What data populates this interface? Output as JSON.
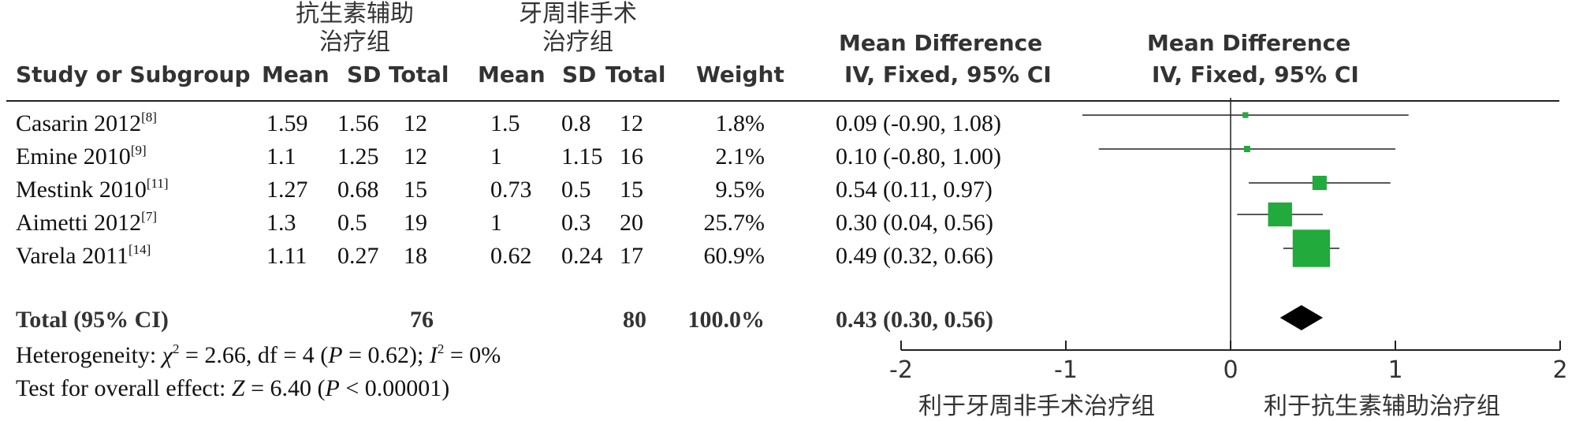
{
  "chart_data": {
    "type": "forest",
    "headers": {
      "group1": "抗生素辅助\n治疗组",
      "group2": "牙周非手术\n治疗组",
      "study": "Study or Subgroup",
      "mean1": "Mean",
      "sd1": "SD",
      "total1": "Total",
      "mean2": "Mean",
      "sd2": "SD",
      "total2": "Total",
      "weight": "Weight",
      "md_table_title": "Mean Difference",
      "md_table_sub": "IV, Fixed, 95% CI",
      "md_plot_title": "Mean Difference",
      "md_plot_sub": "IV, Fixed, 95% CI"
    },
    "studies": [
      {
        "name": "Casarin 2012",
        "ref": "[8]",
        "mean1": "1.59",
        "sd1": "1.56",
        "total1": "12",
        "mean2": "1.5",
        "sd2": "0.8",
        "total2": "12",
        "weight": "1.8%",
        "ci_text": "0.09 (-0.90, 1.08)",
        "md": 0.09,
        "lo": -0.9,
        "hi": 1.08,
        "w": 1.8
      },
      {
        "name": "Emine 2010",
        "ref": "[9]",
        "mean1": "1.1",
        "sd1": "1.25",
        "total1": "12",
        "mean2": "1",
        "sd2": "1.15",
        "total2": "16",
        "weight": "2.1%",
        "ci_text": "0.10 (-0.80, 1.00)",
        "md": 0.1,
        "lo": -0.8,
        "hi": 1.0,
        "w": 2.1
      },
      {
        "name": "Mestink 2010",
        "ref": "[11]",
        "mean1": "1.27",
        "sd1": "0.68",
        "total1": "15",
        "mean2": "0.73",
        "sd2": "0.5",
        "total2": "15",
        "weight": "9.5%",
        "ci_text": "0.54 (0.11, 0.97)",
        "md": 0.54,
        "lo": 0.11,
        "hi": 0.97,
        "w": 9.5
      },
      {
        "name": "Aimetti 2012",
        "ref": "[7]",
        "mean1": "1.3",
        "sd1": "0.5",
        "total1": "19",
        "mean2": "1",
        "sd2": "0.3",
        "total2": "20",
        "weight": "25.7%",
        "ci_text": "0.30 (0.04, 0.56)",
        "md": 0.3,
        "lo": 0.04,
        "hi": 0.56,
        "w": 25.7
      },
      {
        "name": "Varela 2011",
        "ref": "[14]",
        "mean1": "1.11",
        "sd1": "0.27",
        "total1": "18",
        "mean2": "0.62",
        "sd2": "0.24",
        "total2": "17",
        "weight": "60.9%",
        "ci_text": "0.49 (0.32, 0.66)",
        "md": 0.49,
        "lo": 0.32,
        "hi": 0.66,
        "w": 60.9
      }
    ],
    "total": {
      "label": "Total (95% CI)",
      "total1": "76",
      "total2": "80",
      "weight": "100.0%",
      "ci_text": "0.43 (0.30, 0.56)",
      "md": 0.43,
      "lo": 0.3,
      "hi": 0.56
    },
    "heterogeneity": {
      "prefix": "Heterogeneity: ",
      "chi_sym": "χ",
      "chi_pow": "2",
      "mid1": " = 2.66, df = 4 (",
      "p_sym": "P",
      "mid2": " = 0.62); ",
      "i_sym": "I",
      "i_pow": "2",
      "end": " = 0%"
    },
    "overall": {
      "prefix": "Test for overall effect: ",
      "z_sym": "Z",
      "mid": " = 6.40 (",
      "p_sym": "P",
      "end": " < 0.00001)"
    },
    "x_axis": {
      "ticks": [
        -2,
        -1,
        0,
        1,
        2
      ],
      "tick_labels": [
        "-2",
        "-1",
        "0",
        "1",
        "2"
      ],
      "xlim": [
        -2,
        2
      ]
    },
    "favours_left": "利于牙周非手术治疗组",
    "favours_right": "利于抗生素辅助治疗组",
    "colors": {
      "square": "#22aa3c",
      "diamond": "#000000",
      "line": "#222222"
    }
  }
}
